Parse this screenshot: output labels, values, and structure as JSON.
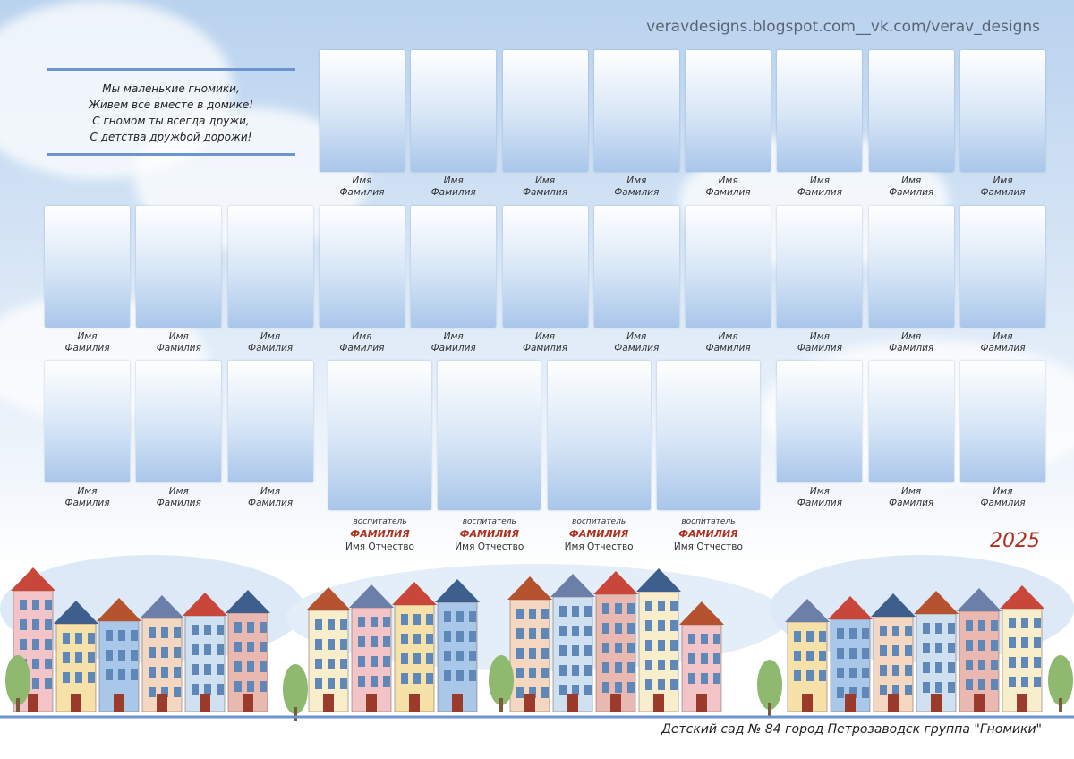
{
  "watermark": "veravdesigns.blogspot.com__vk.com/verav_designs",
  "poem": [
    "Мы маленькие гномики,",
    "Живем все вместе в домике!",
    "С гномом ты всегда дружи,",
    "С детства дружбой дорожи!"
  ],
  "children": [
    [
      {
        "name": "Имя",
        "surname": "Фамилия"
      },
      {
        "name": "Имя",
        "surname": "Фамилия"
      },
      {
        "name": "Имя",
        "surname": "Фамилия"
      },
      {
        "name": "Имя",
        "surname": "Фамилия"
      },
      {
        "name": "Имя",
        "surname": "Фамилия"
      },
      {
        "name": "Имя",
        "surname": "Фамилия"
      },
      {
        "name": "Имя",
        "surname": "Фамилия"
      },
      {
        "name": "Имя",
        "surname": "Фамилия"
      }
    ],
    [
      {
        "name": "Имя",
        "surname": "Фамилия"
      },
      {
        "name": "Имя",
        "surname": "Фамилия"
      },
      {
        "name": "Имя",
        "surname": "Фамилия"
      },
      {
        "name": "Имя",
        "surname": "Фамилия"
      },
      {
        "name": "Имя",
        "surname": "Фамилия"
      },
      {
        "name": "Имя",
        "surname": "Фамилия"
      },
      {
        "name": "Имя",
        "surname": "Фамилия"
      },
      {
        "name": "Имя",
        "surname": "Фамилия"
      },
      {
        "name": "Имя",
        "surname": "Фамилия"
      },
      {
        "name": "Имя",
        "surname": "Фамилия"
      },
      {
        "name": "Имя",
        "surname": "Фамилия"
      }
    ],
    [
      {
        "name": "Имя",
        "surname": "Фамилия"
      },
      {
        "name": "Имя",
        "surname": "Фамилия"
      },
      {
        "name": "Имя",
        "surname": "Фамилия"
      },
      {
        "name": "Имя",
        "surname": "Фамилия"
      },
      {
        "name": "Имя",
        "surname": "Фамилия"
      },
      {
        "name": "Имя",
        "surname": "Фамилия"
      }
    ]
  ],
  "teachers": [
    {
      "role": "воспитатель",
      "surname": "ФАМИЛИЯ",
      "name": "Имя Отчество"
    },
    {
      "role": "воспитатель",
      "surname": "ФАМИЛИЯ",
      "name": "Имя Отчество"
    },
    {
      "role": "воспитатель",
      "surname": "ФАМИЛИЯ",
      "name": "Имя Отчество"
    },
    {
      "role": "воспитатель",
      "surname": "ФАМИЛИЯ",
      "name": "Имя Отчество"
    }
  ],
  "year": "2025",
  "footer": "Детский сад № 84 город Петрозаводск группа \"Гномики\""
}
